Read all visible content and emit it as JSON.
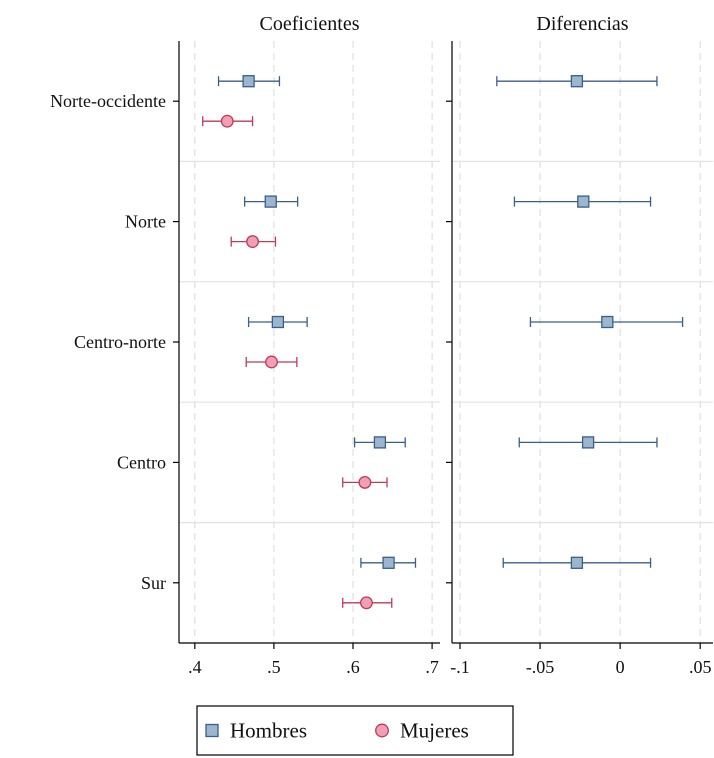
{
  "chart_data": {
    "type": "scatter",
    "subtype": "coefficient-plot-with-confidence-intervals",
    "categories": [
      "Norte-occidente",
      "Norte",
      "Centro-norte",
      "Centro",
      "Sur"
    ],
    "panels": [
      {
        "title": "Coeficientes",
        "xlim": [
          0.38,
          0.71
        ],
        "x_ticks": [
          0.4,
          0.5,
          0.6,
          0.7
        ],
        "x_tick_labels": [
          ".4",
          ".5",
          ".6",
          ".7"
        ],
        "grid": "vertical-dashed",
        "series": [
          {
            "name": "Hombres",
            "marker": "square",
            "color": "#9db6cf",
            "edge_color": "#3a5f88",
            "points": [
              {
                "category": "Norte-occidente",
                "x": 0.468,
                "lo": 0.43,
                "hi": 0.507
              },
              {
                "category": "Norte",
                "x": 0.496,
                "lo": 0.463,
                "hi": 0.53
              },
              {
                "category": "Centro-norte",
                "x": 0.505,
                "lo": 0.468,
                "hi": 0.542
              },
              {
                "category": "Centro",
                "x": 0.634,
                "lo": 0.602,
                "hi": 0.666
              },
              {
                "category": "Sur",
                "x": 0.645,
                "lo": 0.61,
                "hi": 0.679
              }
            ]
          },
          {
            "name": "Mujeres",
            "marker": "circle",
            "color": "#f0a0b4",
            "edge_color": "#c03a5a",
            "points": [
              {
                "category": "Norte-occidente",
                "x": 0.441,
                "lo": 0.41,
                "hi": 0.473
              },
              {
                "category": "Norte",
                "x": 0.473,
                "lo": 0.446,
                "hi": 0.502
              },
              {
                "category": "Centro-norte",
                "x": 0.497,
                "lo": 0.465,
                "hi": 0.529
              },
              {
                "category": "Centro",
                "x": 0.615,
                "lo": 0.587,
                "hi": 0.643
              },
              {
                "category": "Sur",
                "x": 0.617,
                "lo": 0.587,
                "hi": 0.649
              }
            ]
          }
        ]
      },
      {
        "title": "Diferencias",
        "xlim": [
          -0.105,
          0.058
        ],
        "x_ticks": [
          -0.1,
          -0.05,
          0,
          0.05
        ],
        "x_tick_labels": [
          "-.1",
          "-.05",
          "0",
          ".05"
        ],
        "grid": "vertical-dashed",
        "series": [
          {
            "name": "Hombres",
            "marker": "square",
            "color": "#9db6cf",
            "edge_color": "#3a5f88",
            "points": [
              {
                "category": "Norte-occidente",
                "x": -0.027,
                "lo": -0.077,
                "hi": 0.023
              },
              {
                "category": "Norte",
                "x": -0.023,
                "lo": -0.066,
                "hi": 0.019
              },
              {
                "category": "Centro-norte",
                "x": -0.008,
                "lo": -0.056,
                "hi": 0.039
              },
              {
                "category": "Centro",
                "x": -0.02,
                "lo": -0.063,
                "hi": 0.023
              },
              {
                "category": "Sur",
                "x": -0.027,
                "lo": -0.073,
                "hi": 0.019
              }
            ]
          }
        ]
      }
    ],
    "legend": {
      "position": "bottom",
      "entries": [
        {
          "label": "Hombres",
          "marker": "square",
          "color": "#9db6cf",
          "edge_color": "#3a5f88"
        },
        {
          "label": "Mujeres",
          "marker": "circle",
          "color": "#f0a0b4",
          "edge_color": "#c03a5a"
        }
      ]
    }
  }
}
